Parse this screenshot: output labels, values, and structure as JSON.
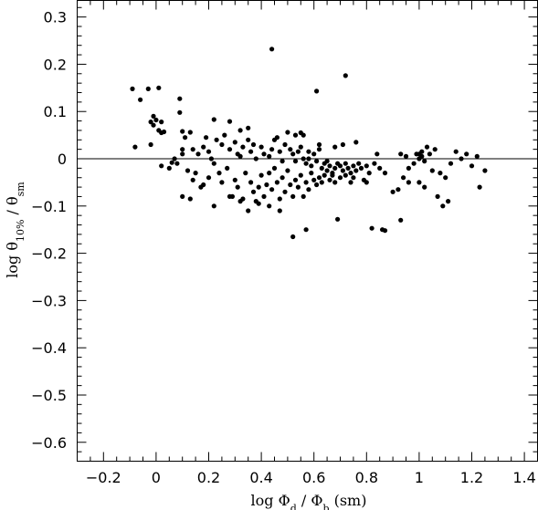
{
  "chart_data": {
    "type": "scatter",
    "xlabel": {
      "main": "log Φ",
      "sub1": "d",
      "mid": " / Φ",
      "sub2": "b",
      "tail": " (sm)"
    },
    "ylabel": {
      "main": "log θ",
      "sub1": "10%",
      "mid": " / θ",
      "sub2": "sm"
    },
    "xlim": [
      -0.3,
      1.45
    ],
    "ylim": [
      -0.64,
      0.335
    ],
    "x_major_ticks": [
      -0.2,
      0,
      0.2,
      0.4,
      0.6,
      0.8,
      1,
      1.2,
      1.4
    ],
    "x_tick_labels": [
      "−0.2",
      "0",
      "0.2",
      "0.4",
      "0.6",
      "0.8",
      "1",
      "1.2",
      "1.4"
    ],
    "y_major_ticks": [
      0.3,
      0.2,
      0.1,
      0,
      -0.1,
      -0.2,
      -0.3,
      -0.4,
      -0.5,
      -0.6
    ],
    "y_tick_labels": [
      "0.3",
      "0.2",
      "0.1",
      "0",
      "−0.1",
      "−0.2",
      "−0.3",
      "−0.4",
      "−0.5",
      "−0.6"
    ],
    "reference_line_y": 0,
    "points": [
      [
        -0.09,
        0.148
      ],
      [
        -0.03,
        0.148
      ],
      [
        -0.06,
        0.125
      ],
      [
        0.01,
        0.15
      ],
      [
        0.09,
        0.127
      ],
      [
        0.44,
        0.232
      ],
      [
        0.72,
        0.176
      ],
      [
        0.61,
        0.143
      ],
      [
        -0.02,
        0.078
      ],
      [
        -0.01,
        0.09
      ],
      [
        0.0,
        0.082
      ],
      [
        0.02,
        0.078
      ],
      [
        -0.01,
        0.071
      ],
      [
        0.01,
        0.06
      ],
      [
        0.02,
        0.055
      ],
      [
        0.03,
        0.057
      ],
      [
        0.09,
        0.098
      ],
      [
        0.1,
        0.058
      ],
      [
        0.13,
        0.056
      ],
      [
        0.22,
        0.083
      ],
      [
        0.28,
        0.079
      ],
      [
        0.32,
        0.06
      ],
      [
        0.35,
        0.065
      ],
      [
        0.46,
        0.045
      ],
      [
        0.5,
        0.056
      ],
      [
        0.53,
        0.05
      ],
      [
        0.55,
        0.055
      ],
      [
        0.56,
        0.05
      ],
      [
        0.58,
        0.015
      ],
      [
        0.62,
        0.03
      ],
      [
        0.68,
        0.025
      ],
      [
        0.71,
        0.03
      ],
      [
        0.76,
        0.035
      ],
      [
        -0.08,
        0.025
      ],
      [
        -0.02,
        0.03
      ],
      [
        0.06,
        -0.008
      ],
      [
        0.08,
        -0.01
      ],
      [
        0.1,
        0.01
      ],
      [
        0.1,
        0.02
      ],
      [
        0.11,
        0.045
      ],
      [
        0.14,
        0.02
      ],
      [
        0.16,
        0.01
      ],
      [
        0.18,
        0.025
      ],
      [
        0.19,
        0.045
      ],
      [
        0.2,
        0.015
      ],
      [
        0.21,
        0.0
      ],
      [
        0.23,
        0.04
      ],
      [
        0.25,
        0.03
      ],
      [
        0.26,
        0.05
      ],
      [
        0.28,
        0.02
      ],
      [
        0.3,
        0.035
      ],
      [
        0.31,
        0.01
      ],
      [
        0.32,
        0.005
      ],
      [
        0.33,
        0.025
      ],
      [
        0.35,
        0.04
      ],
      [
        0.36,
        0.015
      ],
      [
        0.37,
        0.03
      ],
      [
        0.38,
        0.0
      ],
      [
        0.4,
        0.025
      ],
      [
        0.41,
        0.01
      ],
      [
        0.43,
        0.005
      ],
      [
        0.44,
        0.02
      ],
      [
        0.45,
        0.04
      ],
      [
        0.47,
        0.015
      ],
      [
        0.48,
        -0.005
      ],
      [
        0.49,
        0.03
      ],
      [
        0.51,
        0.02
      ],
      [
        0.52,
        0.01
      ],
      [
        0.53,
        -0.005
      ],
      [
        0.54,
        0.015
      ],
      [
        0.55,
        0.025
      ],
      [
        0.56,
        0.0
      ],
      [
        0.57,
        -0.01
      ],
      [
        0.58,
        0.0
      ],
      [
        0.59,
        -0.015
      ],
      [
        0.6,
        0.01
      ],
      [
        0.61,
        -0.005
      ],
      [
        0.62,
        0.02
      ],
      [
        0.63,
        -0.02
      ],
      [
        0.64,
        -0.01
      ],
      [
        0.65,
        -0.005
      ],
      [
        0.66,
        -0.015
      ],
      [
        0.67,
        -0.03
      ],
      [
        0.68,
        -0.02
      ],
      [
        0.69,
        -0.01
      ],
      [
        0.7,
        -0.015
      ],
      [
        0.71,
        -0.025
      ],
      [
        0.72,
        -0.01
      ],
      [
        0.73,
        -0.02
      ],
      [
        0.74,
        -0.03
      ],
      [
        0.75,
        -0.015
      ],
      [
        0.76,
        -0.025
      ],
      [
        0.77,
        -0.01
      ],
      [
        0.78,
        -0.02
      ],
      [
        0.79,
        -0.045
      ],
      [
        0.8,
        -0.015
      ],
      [
        0.81,
        -0.03
      ],
      [
        0.83,
        -0.01
      ],
      [
        0.84,
        0.01
      ],
      [
        0.85,
        -0.02
      ],
      [
        0.87,
        -0.03
      ],
      [
        0.9,
        -0.07
      ],
      [
        0.92,
        -0.065
      ],
      [
        0.93,
        0.01
      ],
      [
        0.95,
        0.005
      ],
      [
        0.96,
        -0.02
      ],
      [
        0.98,
        -0.01
      ],
      [
        0.99,
        0.01
      ],
      [
        1.0,
        0.0
      ],
      [
        1.01,
        0.015
      ],
      [
        1.02,
        -0.005
      ],
      [
        1.03,
        0.025
      ],
      [
        1.04,
        0.01
      ],
      [
        1.05,
        -0.025
      ],
      [
        1.06,
        0.02
      ],
      [
        1.08,
        -0.03
      ],
      [
        1.1,
        -0.04
      ],
      [
        1.12,
        -0.01
      ],
      [
        1.14,
        0.015
      ],
      [
        1.16,
        0.0
      ],
      [
        1.18,
        0.01
      ],
      [
        1.2,
        -0.015
      ],
      [
        1.22,
        0.005
      ],
      [
        1.25,
        -0.025
      ],
      [
        1.01,
        0.005
      ],
      [
        1.0,
        0.01
      ],
      [
        0.02,
        -0.015
      ],
      [
        0.05,
        -0.02
      ],
      [
        0.07,
        0.0
      ],
      [
        0.12,
        -0.025
      ],
      [
        0.14,
        -0.045
      ],
      [
        0.15,
        -0.03
      ],
      [
        0.17,
        -0.06
      ],
      [
        0.18,
        -0.055
      ],
      [
        0.2,
        -0.04
      ],
      [
        0.22,
        -0.01
      ],
      [
        0.24,
        -0.03
      ],
      [
        0.25,
        -0.05
      ],
      [
        0.27,
        -0.02
      ],
      [
        0.29,
        -0.08
      ],
      [
        0.3,
        -0.045
      ],
      [
        0.31,
        -0.06
      ],
      [
        0.33,
        -0.085
      ],
      [
        0.34,
        -0.03
      ],
      [
        0.36,
        -0.05
      ],
      [
        0.37,
        -0.07
      ],
      [
        0.38,
        -0.09
      ],
      [
        0.39,
        -0.06
      ],
      [
        0.4,
        -0.035
      ],
      [
        0.41,
        -0.08
      ],
      [
        0.42,
        -0.055
      ],
      [
        0.43,
        -0.03
      ],
      [
        0.44,
        -0.065
      ],
      [
        0.45,
        -0.02
      ],
      [
        0.46,
        -0.05
      ],
      [
        0.47,
        -0.085
      ],
      [
        0.48,
        -0.04
      ],
      [
        0.49,
        -0.07
      ],
      [
        0.5,
        -0.025
      ],
      [
        0.51,
        -0.055
      ],
      [
        0.52,
        -0.08
      ],
      [
        0.53,
        -0.045
      ],
      [
        0.54,
        -0.06
      ],
      [
        0.55,
        -0.035
      ],
      [
        0.56,
        -0.08
      ],
      [
        0.57,
        -0.05
      ],
      [
        0.58,
        -0.065
      ],
      [
        0.59,
        -0.03
      ],
      [
        0.6,
        -0.045
      ],
      [
        0.61,
        -0.055
      ],
      [
        0.62,
        -0.04
      ],
      [
        0.63,
        -0.05
      ],
      [
        0.64,
        -0.035
      ],
      [
        0.65,
        -0.025
      ],
      [
        0.66,
        -0.045
      ],
      [
        0.67,
        -0.035
      ],
      [
        0.68,
        -0.05
      ],
      [
        0.7,
        -0.04
      ],
      [
        0.72,
        -0.035
      ],
      [
        0.74,
        -0.05
      ],
      [
        0.75,
        -0.04
      ],
      [
        0.8,
        -0.05
      ],
      [
        0.1,
        -0.08
      ],
      [
        0.13,
        -0.085
      ],
      [
        0.22,
        -0.1
      ],
      [
        0.28,
        -0.08
      ],
      [
        0.32,
        -0.09
      ],
      [
        0.35,
        -0.11
      ],
      [
        0.39,
        -0.095
      ],
      [
        0.43,
        -0.1
      ],
      [
        0.47,
        -0.11
      ],
      [
        0.52,
        -0.165
      ],
      [
        0.57,
        -0.15
      ],
      [
        0.69,
        -0.128
      ],
      [
        0.82,
        -0.147
      ],
      [
        0.86,
        -0.15
      ],
      [
        0.87,
        -0.152
      ],
      [
        0.93,
        -0.13
      ],
      [
        1.0,
        -0.05
      ],
      [
        1.02,
        -0.06
      ],
      [
        1.07,
        -0.08
      ],
      [
        1.09,
        -0.1
      ],
      [
        1.11,
        -0.09
      ],
      [
        1.23,
        -0.06
      ],
      [
        0.96,
        -0.05
      ],
      [
        0.94,
        -0.04
      ]
    ]
  }
}
